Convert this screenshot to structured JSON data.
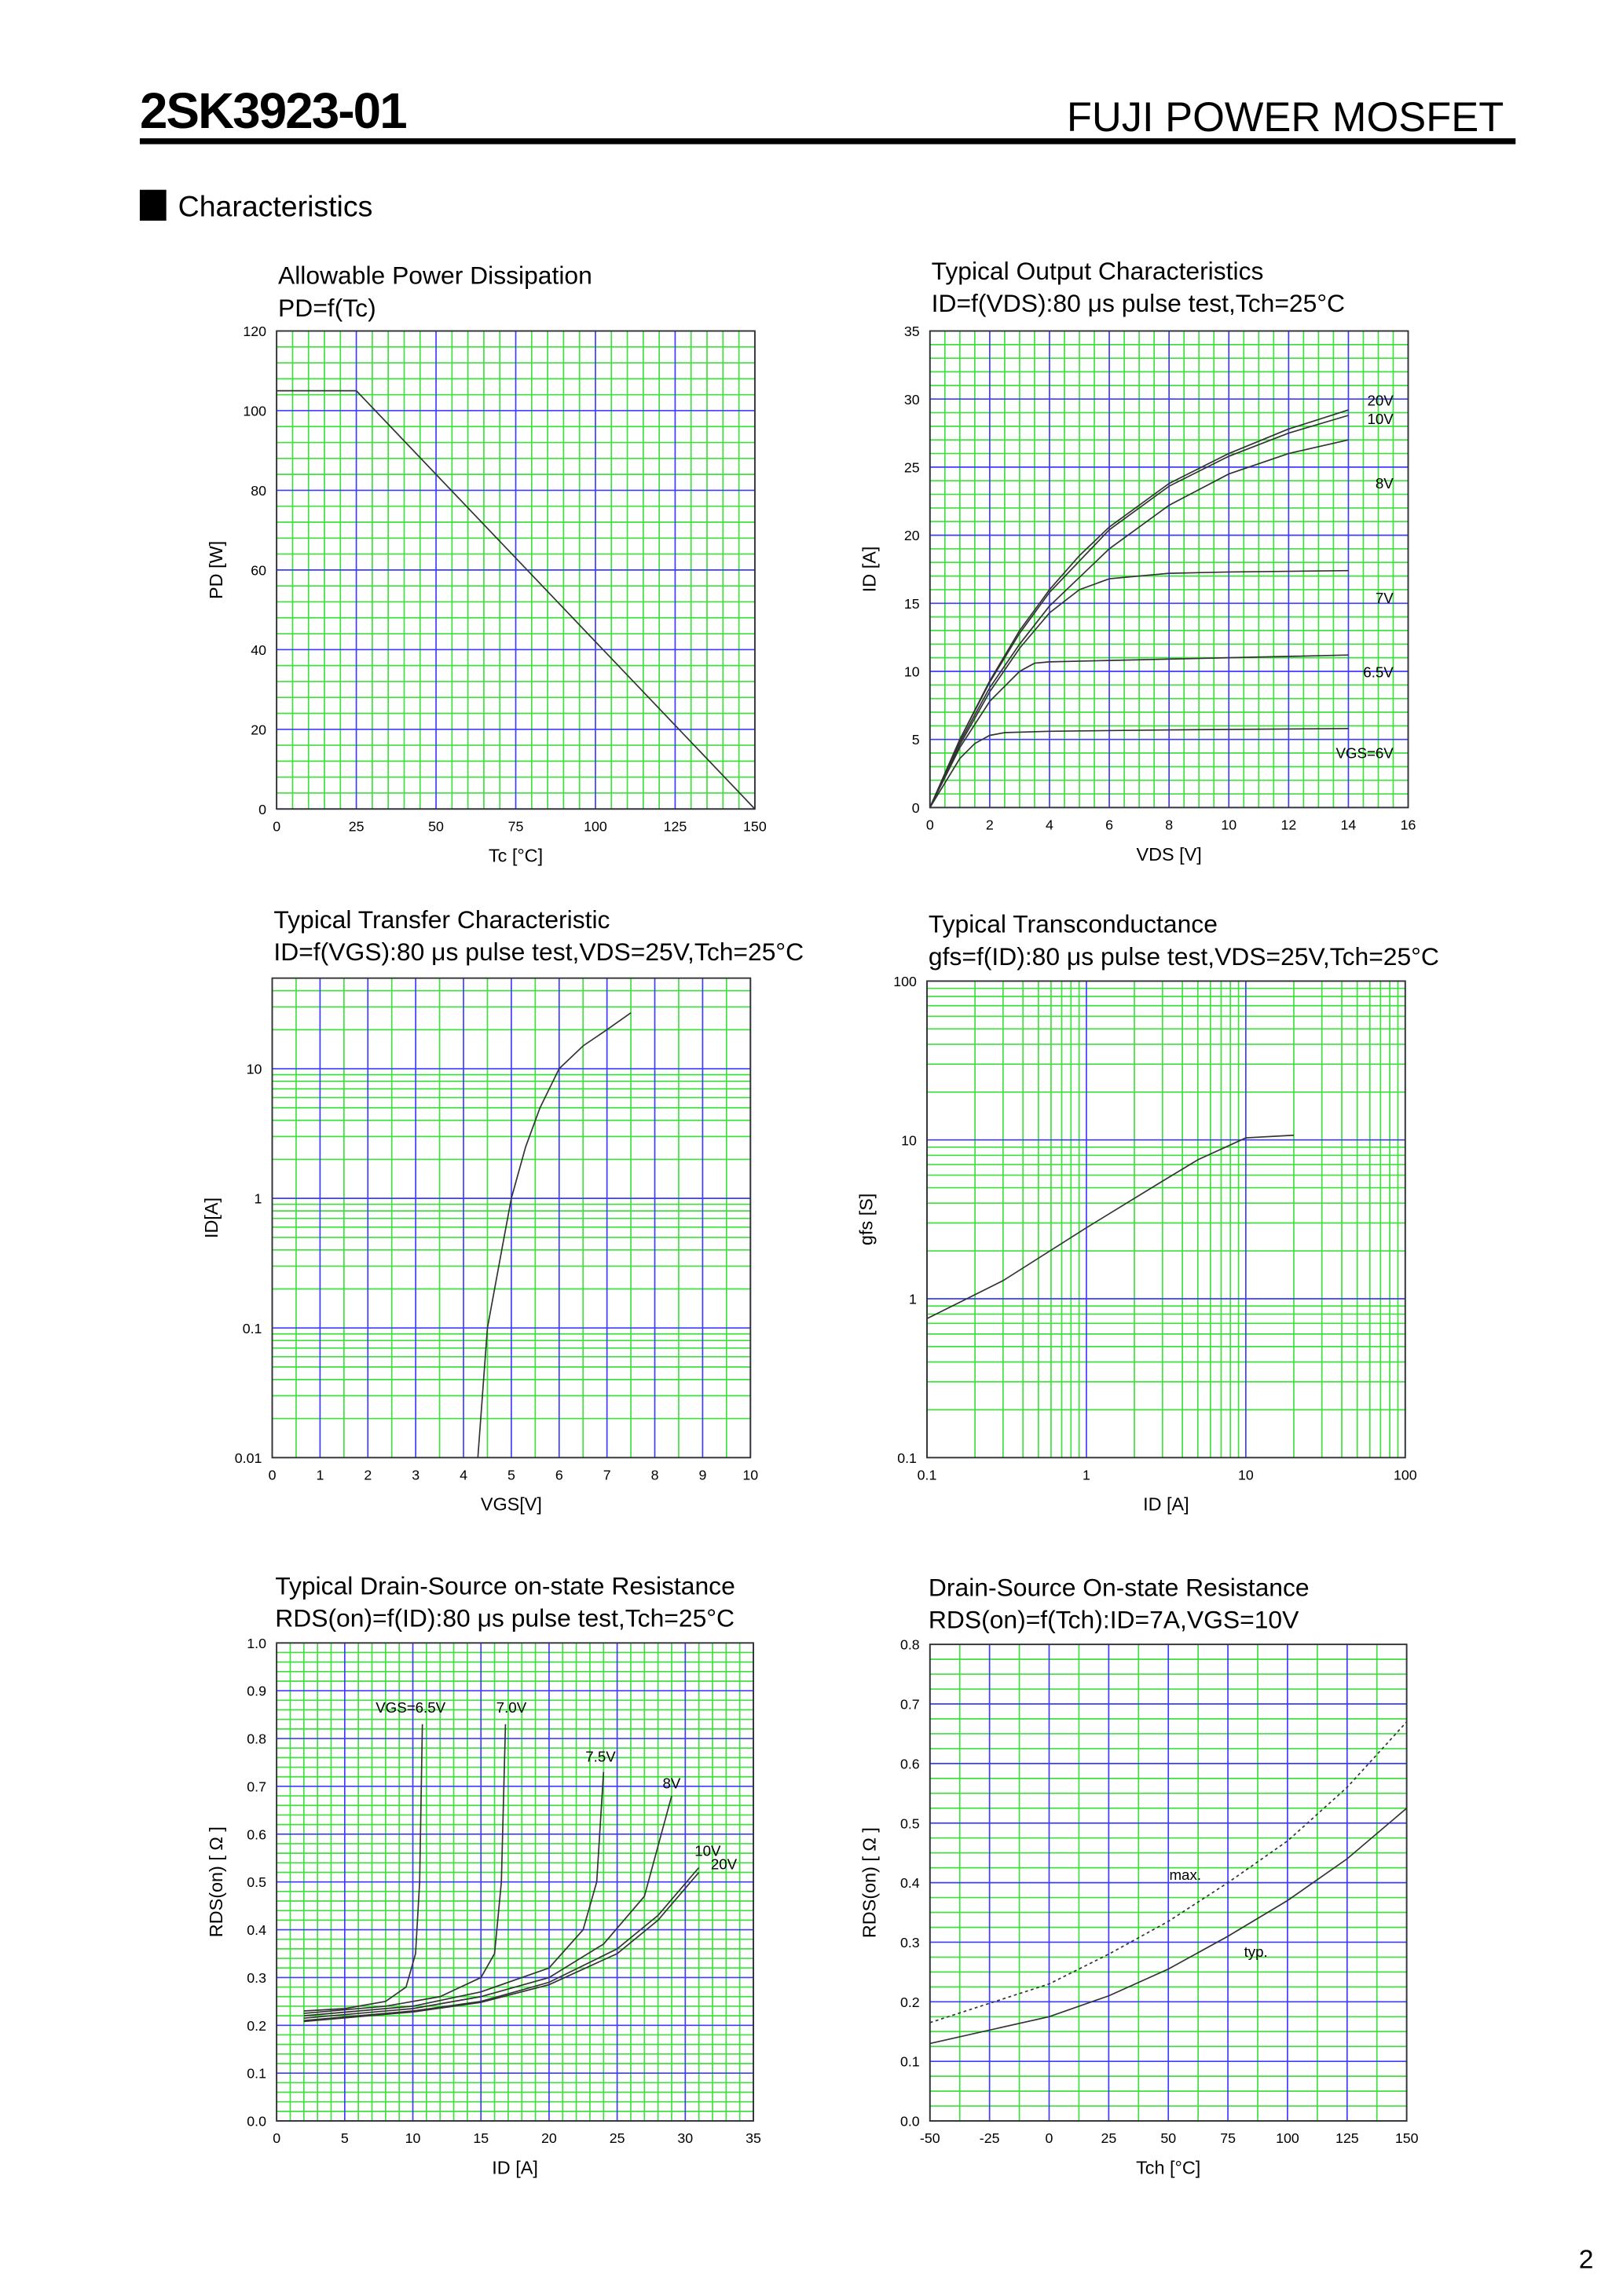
{
  "header": {
    "part": "2SK3923-01",
    "maker": "FUJI POWER MOSFET",
    "section": "Characteristics",
    "page": "2"
  },
  "chart_data": [
    {
      "type": "line",
      "title": "Allowable Power Dissipation",
      "subtitle": "PD=f(Tc)",
      "x_label": "Tc [°C]",
      "y_label": "PD [W]",
      "xlim": [
        0,
        150
      ],
      "xticks": [
        0,
        25,
        50,
        75,
        100,
        125,
        150
      ],
      "ylim": [
        0,
        120
      ],
      "yticks": [
        0,
        20,
        40,
        60,
        80,
        100,
        120
      ],
      "grid": true,
      "grid_color": "#3c3cff",
      "minor_grid_color": "#3ee03e",
      "series": [
        {
          "color": "#333333",
          "x": [
            0,
            25,
            150
          ],
          "values": [
            105,
            105,
            0
          ]
        }
      ]
    },
    {
      "type": "line",
      "title": "Typical Output Characteristics",
      "subtitle": "ID=f(VDS):80 μs pulse test,Tch=25°C",
      "x_label": "VDS [V]",
      "y_label": "ID [A]",
      "xlim": [
        0,
        16
      ],
      "xticks": [
        0,
        2,
        4,
        6,
        8,
        10,
        12,
        14,
        16
      ],
      "ylim": [
        0,
        35
      ],
      "yticks": [
        0,
        5,
        10,
        15,
        20,
        25,
        30,
        35
      ],
      "grid": true,
      "grid_color": "#3c3cff",
      "minor_grid_color": "#3ee03e",
      "series": [
        {
          "name": "20V",
          "color": "#333333",
          "x": [
            0,
            1,
            2,
            3,
            4,
            5,
            6,
            8,
            10,
            12,
            14
          ],
          "values": [
            0,
            5,
            9.3,
            13,
            16,
            18.5,
            20.6,
            23.8,
            26,
            27.8,
            29.2
          ]
        },
        {
          "name": "10V",
          "color": "#333333",
          "x": [
            0,
            1,
            2,
            3,
            4,
            6,
            8,
            10,
            12,
            14
          ],
          "values": [
            0,
            5,
            9.2,
            12.8,
            15.8,
            20.4,
            23.6,
            25.8,
            27.5,
            28.8
          ]
        },
        {
          "name": "8V",
          "color": "#333333",
          "x": [
            0,
            1,
            2,
            3,
            4,
            6,
            8,
            10,
            12,
            14
          ],
          "values": [
            0,
            4.8,
            8.8,
            12,
            14.8,
            19,
            22.2,
            24.5,
            26,
            27
          ]
        },
        {
          "name": "7V",
          "color": "#333333",
          "x": [
            0,
            1,
            2,
            3,
            4,
            5,
            6,
            8,
            10,
            14
          ],
          "values": [
            0,
            4.6,
            8.5,
            11.7,
            14.3,
            16,
            16.8,
            17.2,
            17.3,
            17.4
          ]
        },
        {
          "name": "6.5V",
          "color": "#333333",
          "x": [
            0,
            1,
            2,
            3,
            3.5,
            4,
            6,
            10,
            14
          ],
          "values": [
            0,
            4.4,
            7.8,
            10,
            10.6,
            10.7,
            10.8,
            11,
            11.2
          ]
        },
        {
          "name": "VGS=6V",
          "color": "#333333",
          "x": [
            0,
            1,
            1.5,
            2,
            2.5,
            4,
            8,
            14
          ],
          "values": [
            0,
            3.6,
            4.7,
            5.3,
            5.5,
            5.6,
            5.7,
            5.8
          ]
        }
      ]
    },
    {
      "type": "line",
      "title": "Typical Transfer Characteristic",
      "subtitle": "ID=f(VGS):80 μs pulse test,VDS=25V,Tch=25°C",
      "x_label": "VGS[V]",
      "y_label": "ID[A]",
      "y_scale": "log",
      "xlim": [
        0,
        10
      ],
      "xticks": [
        0,
        1,
        2,
        3,
        4,
        5,
        6,
        7,
        8,
        9,
        10
      ],
      "ylim": [
        0.01,
        50
      ],
      "yticks": [
        0.01,
        0.1,
        1,
        10
      ],
      "grid": true,
      "grid_color": "#3c3cff",
      "minor_grid_color": "#3ee03e",
      "series": [
        {
          "color": "#333333",
          "x": [
            4.3,
            4.5,
            4.8,
            5,
            5.3,
            5.6,
            6,
            6.5,
            7,
            7.5
          ],
          "values": [
            0.01,
            0.1,
            0.4,
            1,
            2.5,
            5,
            10,
            15,
            20,
            27
          ]
        }
      ]
    },
    {
      "type": "line",
      "title": "Typical Transconductance",
      "subtitle": "gfs=f(ID):80 μs pulse test,VDS=25V,Tch=25°C",
      "x_label": "ID [A]",
      "y_label": "gfs [S]",
      "x_scale": "log",
      "y_scale": "log",
      "xlim": [
        0.1,
        100
      ],
      "xticks": [
        0.1,
        1,
        10,
        100
      ],
      "ylim": [
        0.1,
        100
      ],
      "yticks": [
        0.1,
        1,
        10,
        100
      ],
      "grid": true,
      "grid_color": "#3c3cff",
      "minor_grid_color": "#3ee03e",
      "series": [
        {
          "color": "#333333",
          "x": [
            0.1,
            0.3,
            1,
            3,
            5,
            10,
            20
          ],
          "values": [
            0.75,
            1.3,
            2.8,
            5.5,
            7.5,
            10.3,
            10.7
          ]
        }
      ]
    },
    {
      "type": "line",
      "title": "Typical Drain-Source on-state Resistance",
      "subtitle": "RDS(on)=f(ID):80  μs pulse test,Tch=25°C",
      "x_label": "ID [A]",
      "y_label": "RDS(on) [ Ω ]",
      "xlim": [
        0,
        35
      ],
      "xticks": [
        0,
        5,
        10,
        15,
        20,
        25,
        30,
        35
      ],
      "ylim": [
        0,
        1
      ],
      "yticks": [
        {
          "value": 0,
          "label": "0.0"
        },
        0.1,
        0.2,
        0.3,
        0.4,
        0.5,
        0.6,
        0.7,
        0.8,
        0.9,
        {
          "value": 1,
          "label": "1.0"
        }
      ],
      "grid": true,
      "grid_color": "#3c3cff",
      "minor_grid_color": "#3ee03e",
      "series": [
        {
          "name": "VGS=6.5V",
          "color": "#333333",
          "x": [
            2,
            5,
            8,
            9.5,
            10.2,
            10.5,
            10.7
          ],
          "values": [
            0.23,
            0.235,
            0.25,
            0.28,
            0.35,
            0.5,
            0.83
          ]
        },
        {
          "name": "7.0V",
          "color": "#333333",
          "x": [
            2,
            8,
            12,
            15,
            16,
            16.5,
            16.8
          ],
          "values": [
            0.225,
            0.24,
            0.26,
            0.3,
            0.35,
            0.5,
            0.83
          ]
        },
        {
          "name": "7.5V",
          "color": "#333333",
          "x": [
            2,
            10,
            15,
            20,
            22.5,
            23.5,
            24
          ],
          "values": [
            0.22,
            0.24,
            0.27,
            0.32,
            0.4,
            0.5,
            0.73
          ]
        },
        {
          "name": "8V",
          "color": "#333333",
          "x": [
            2,
            10,
            15,
            20,
            24,
            27,
            29
          ],
          "values": [
            0.215,
            0.235,
            0.26,
            0.3,
            0.37,
            0.47,
            0.68
          ]
        },
        {
          "name": "10V",
          "color": "#333333",
          "x": [
            2,
            10,
            15,
            20,
            25,
            28,
            31
          ],
          "values": [
            0.21,
            0.23,
            0.25,
            0.29,
            0.36,
            0.43,
            0.53
          ]
        },
        {
          "name": "20V",
          "color": "#333333",
          "x": [
            2,
            10,
            15,
            20,
            25,
            28,
            31
          ],
          "values": [
            0.208,
            0.228,
            0.248,
            0.285,
            0.35,
            0.42,
            0.52
          ]
        }
      ]
    },
    {
      "type": "line",
      "title": "Drain-Source On-state Resistance",
      "subtitle": "RDS(on)=f(Tch):ID=7A,VGS=10V",
      "x_label": "Tch [°C]",
      "y_label": "RDS(on) [ Ω ]",
      "xlim": [
        -50,
        150
      ],
      "xticks": [
        -50,
        -25,
        0,
        25,
        50,
        75,
        100,
        125,
        150
      ],
      "ylim": [
        0,
        0.8
      ],
      "yticks": [
        {
          "value": 0,
          "label": "0.0"
        },
        0.1,
        0.2,
        0.3,
        0.4,
        0.5,
        0.6,
        0.7,
        0.8
      ],
      "grid": true,
      "grid_color": "#3c3cff",
      "minor_grid_color": "#3ee03e",
      "series": [
        {
          "name": "typ.",
          "color": "#333333",
          "x": [
            -50,
            0,
            25,
            50,
            75,
            100,
            125,
            150
          ],
          "values": [
            0.13,
            0.175,
            0.21,
            0.255,
            0.31,
            0.37,
            0.44,
            0.525
          ]
        },
        {
          "name": "max.",
          "color": "#333333",
          "dashed": true,
          "x": [
            -50,
            0,
            25,
            50,
            75,
            100,
            125,
            150
          ],
          "values": [
            0.165,
            0.23,
            0.28,
            0.335,
            0.4,
            0.47,
            0.56,
            0.67
          ]
        }
      ]
    }
  ]
}
